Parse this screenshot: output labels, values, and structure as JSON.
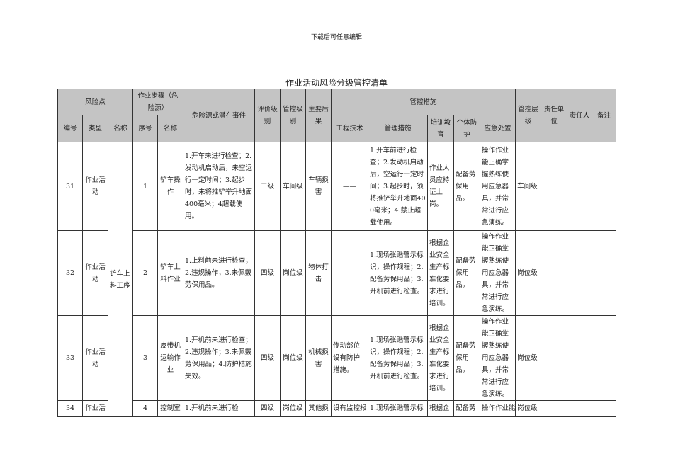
{
  "watermark": "下载后可任意编辑",
  "title": "作业活动风险分级管控清单",
  "headers": {
    "risk_point": "风险点",
    "step": "作业步骤（危险源）",
    "hazard": "危险源或潜在事件",
    "eval_level": "评价级别",
    "control_level": "管控级别",
    "consequence": "主要后果",
    "measures": "管控措施",
    "control_tier": "管控层级",
    "resp_unit": "责任单位",
    "resp_person": "责任人",
    "remarks": "备注",
    "no": "编号",
    "type": "类型",
    "name": "名称",
    "seq": "序号",
    "step_name": "名称",
    "engineering": "工程技术",
    "management": "管理措施",
    "training": "培训教育",
    "ppe": "个体防护",
    "emergency": "应急处置"
  },
  "group_name": "铲车上料工序",
  "rows": [
    {
      "no": "31",
      "type": "作业活动",
      "seq": "1",
      "step_name": "铲车操作",
      "hazard": "1.开车未进行检查；2.发动机启动后，未空运行一定时间；3.起步时，未将推铲举升地面400毫米；4超载使用。",
      "eval": "三级",
      "control": "车间级",
      "consequence": "车辆损害",
      "engineering": "——",
      "management": "1.开车前进行检查；2.发动机启动后，空运行一定时间；3.起步时，须将推铲举升地面400毫米；4.禁止超载使用。",
      "training": "作业人员应持证上岗。",
      "ppe": "配备劳保用品。",
      "emergency": "操作作业能正确掌握熟练使用应急器具，并常常进行应急演练。",
      "tier": "车间级"
    },
    {
      "no": "32",
      "type": "作业活动",
      "seq": "2",
      "step_name": "铲车上料作业",
      "hazard": "1.上料前未进行检查；2.违规操作；3.未佩戴劳保用品。",
      "eval": "四级",
      "control": "岗位级",
      "consequence": "物体打击",
      "engineering": "——",
      "management": "1.现场张贴警示标识，操作规程；2.配备劳保用品；3.开机前进行检查。",
      "training": "根据企业安全生产标准化要求进行培训。",
      "ppe": "配备劳保用品。",
      "emergency": "操作作业能正确掌握熟练使用应急器具，并常常进行应急演练。",
      "tier": "岗位级"
    },
    {
      "no": "33",
      "type": "作业活动",
      "seq": "3",
      "step_name": "皮带机运输作业",
      "hazard": "1.开机前未进行检查；2.违规操作；3.未佩戴劳保用品；4.防护措施失效。",
      "eval": "四级",
      "control": "岗位级",
      "consequence": "机械损害",
      "engineering": "传动部位设有防护措施。",
      "management": "1.现场张贴警示标识，操作规程；2.配备劳保用品；3.开机前进行检查。",
      "training": "根据企业安全生产标准化要求进行培训。",
      "ppe": "配备劳保用品。",
      "emergency": "操作作业能正确掌握熟练使用应急器具，并常常进行应急演练。",
      "tier": "岗位级"
    },
    {
      "no": "34",
      "type": "作业活",
      "seq": "4",
      "step_name": "控制室",
      "hazard": "1.开机前未进行检",
      "eval": "四级",
      "control": "岗位级",
      "consequence": "其他损",
      "engineering": "设有监控报",
      "management": "1.现场张贴警示标",
      "training": "根据企",
      "ppe": "配备劳",
      "emergency": "操作作业能",
      "tier": "岗位级"
    }
  ]
}
